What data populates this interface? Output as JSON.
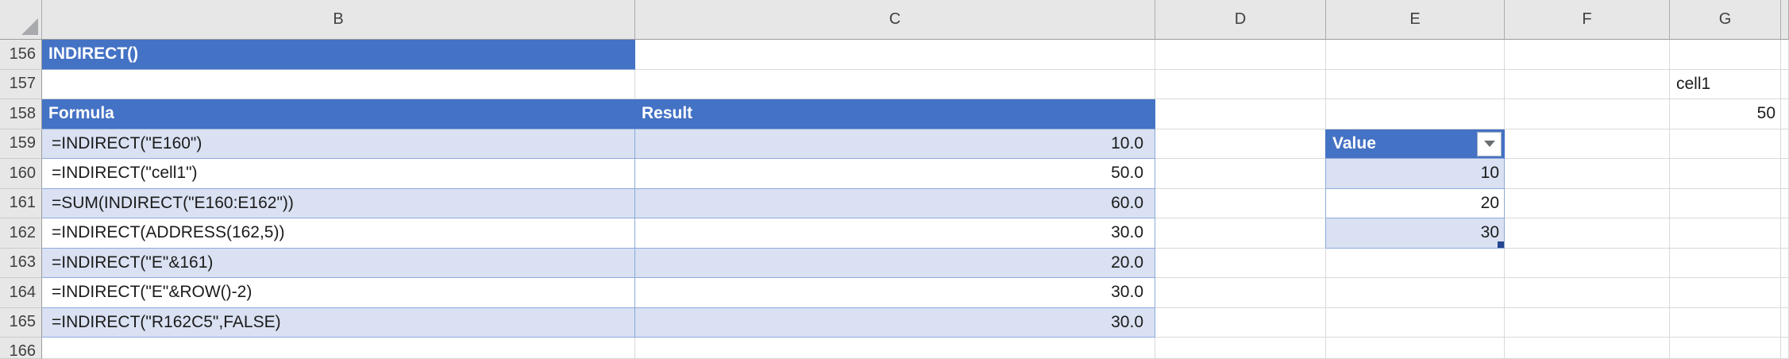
{
  "sheet": {
    "column_headers": [
      "B",
      "C",
      "D",
      "E",
      "F",
      "G"
    ],
    "row_headers": [
      "156",
      "157",
      "158",
      "159",
      "160",
      "161",
      "162",
      "163",
      "164",
      "165",
      "166"
    ],
    "section_title": "INDIRECT()",
    "named_cells": {
      "g157": "cell1",
      "g158": "50"
    },
    "formula_table": {
      "col_formula": "Formula",
      "col_result": "Result",
      "rows": [
        {
          "formula": "=INDIRECT(\"E160\")",
          "result": "10.0"
        },
        {
          "formula": "=INDIRECT(\"cell1\")",
          "result": "50.0"
        },
        {
          "formula": "=SUM(INDIRECT(\"E160:E162\"))",
          "result": "60.0"
        },
        {
          "formula": "=INDIRECT(ADDRESS(162,5))",
          "result": "30.0"
        },
        {
          "formula": "=INDIRECT(\"E\"&161)",
          "result": "20.0"
        },
        {
          "formula": "=INDIRECT(\"E\"&ROW()-2)",
          "result": "30.0"
        },
        {
          "formula": "=INDIRECT(\"R162C5\",FALSE)",
          "result": "30.0"
        }
      ]
    },
    "value_table": {
      "header": "Value",
      "rows": [
        "10",
        "20",
        "30"
      ]
    },
    "colors": {
      "header_blue": "#4472C4",
      "band_light": "#D9E1F2",
      "table_border": "#8EA9DB"
    }
  }
}
